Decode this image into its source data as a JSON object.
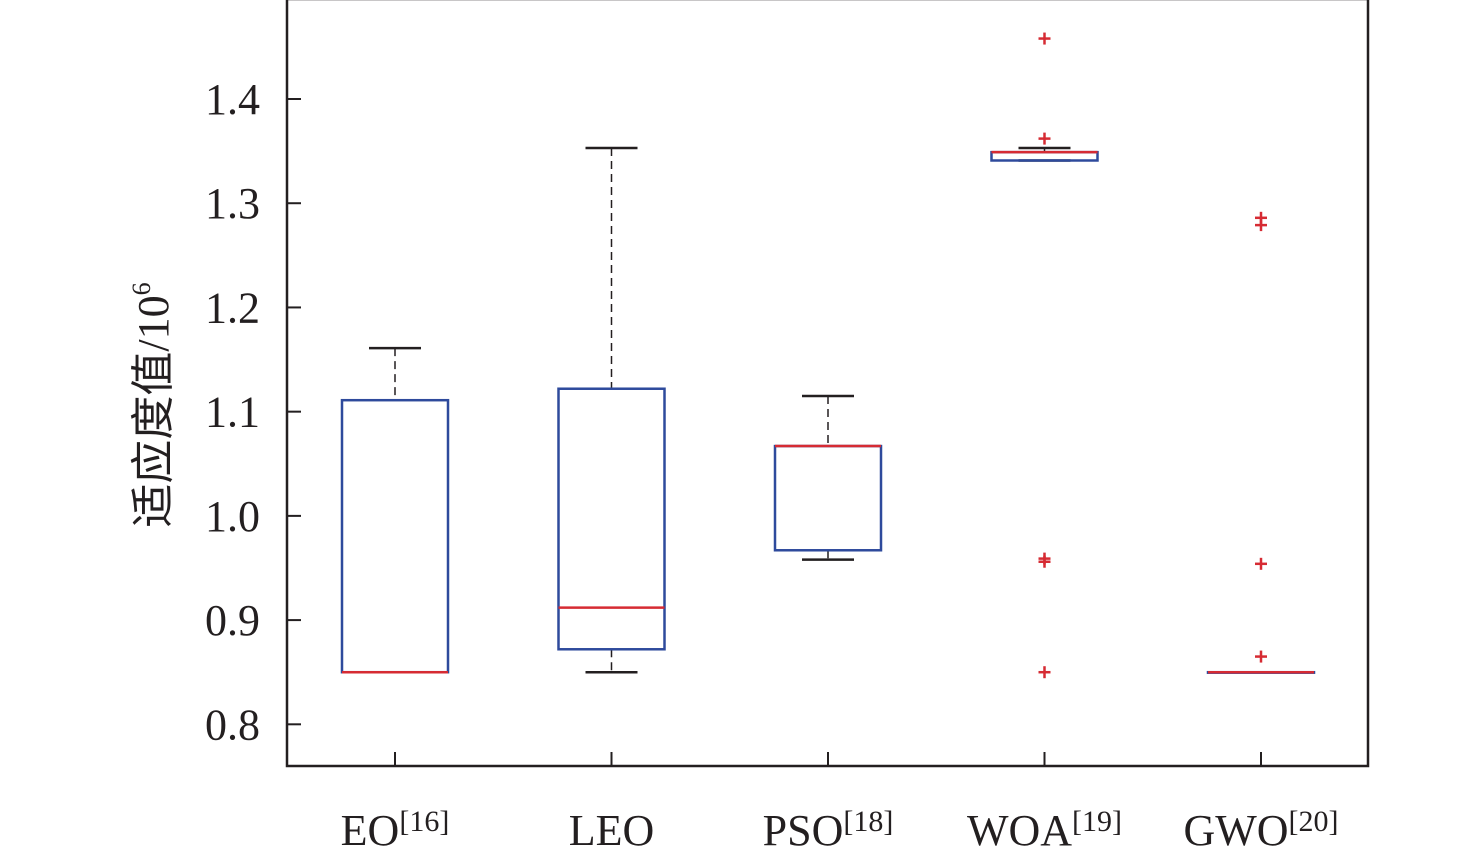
{
  "chart_data": {
    "type": "boxplot",
    "title": "",
    "xlabel": "",
    "ylabel": "适应度值/10",
    "ylabel_superscript": "6",
    "ylim": [
      0.76,
      1.495
    ],
    "yticks": [
      "0.8",
      "0.9",
      "1.0",
      "1.1",
      "1.2",
      "1.3",
      "1.4"
    ],
    "grid": false,
    "legend": "none",
    "colors": {
      "box": "#2e4a9c",
      "median": "#d62b33",
      "whisker": "#231f20",
      "outlier": "#d62b33",
      "axis": "#231f20"
    },
    "categories": [
      {
        "name": "EO",
        "ref": "[16]"
      },
      {
        "name": "LEO",
        "ref": ""
      },
      {
        "name": "PSO",
        "ref": "[18]"
      },
      {
        "name": "WOA",
        "ref": "[19]"
      },
      {
        "name": "GWO",
        "ref": "[20]"
      }
    ],
    "boxes": [
      {
        "min": 0.85,
        "q1": 0.85,
        "median": 0.85,
        "q3": 1.111,
        "max": 1.161,
        "outliers": []
      },
      {
        "min": 0.85,
        "q1": 0.872,
        "median": 0.912,
        "q3": 1.122,
        "max": 1.353,
        "outliers": []
      },
      {
        "min": 0.958,
        "q1": 0.967,
        "median": 1.067,
        "q3": 1.067,
        "max": 1.115,
        "outliers": []
      },
      {
        "min": 1.341,
        "q1": 1.341,
        "median": 1.349,
        "q3": 1.349,
        "max": 1.353,
        "outliers": [
          1.458,
          1.362,
          0.959,
          0.956,
          0.85
        ]
      },
      {
        "min": 0.85,
        "q1": 0.85,
        "median": 0.85,
        "q3": 0.85,
        "max": 0.85,
        "outliers": [
          1.286,
          1.279,
          0.954,
          0.865
        ]
      }
    ]
  }
}
